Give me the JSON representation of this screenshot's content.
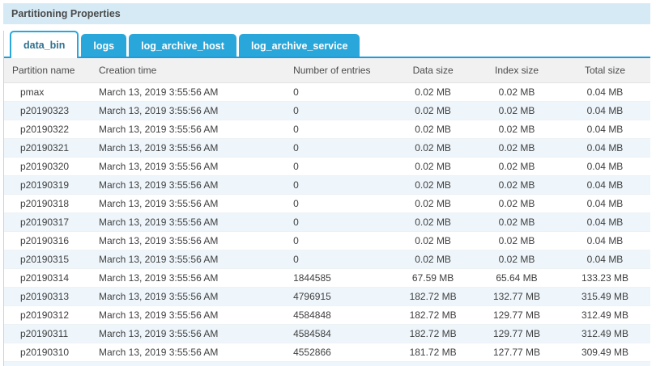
{
  "panel": {
    "title": "Partitioning Properties"
  },
  "tabs": [
    {
      "label": "data_bin",
      "active": true
    },
    {
      "label": "logs",
      "active": false
    },
    {
      "label": "log_archive_host",
      "active": false
    },
    {
      "label": "log_archive_service",
      "active": false
    }
  ],
  "table": {
    "columns": [
      "Partition name",
      "Creation time",
      "Number of entries",
      "Data size",
      "Index size",
      "Total size"
    ],
    "rows": [
      [
        "pmax",
        "March 13, 2019 3:55:56 AM",
        "0",
        "0.02 MB",
        "0.02 MB",
        "0.04 MB"
      ],
      [
        "p20190323",
        "March 13, 2019 3:55:56 AM",
        "0",
        "0.02 MB",
        "0.02 MB",
        "0.04 MB"
      ],
      [
        "p20190322",
        "March 13, 2019 3:55:56 AM",
        "0",
        "0.02 MB",
        "0.02 MB",
        "0.04 MB"
      ],
      [
        "p20190321",
        "March 13, 2019 3:55:56 AM",
        "0",
        "0.02 MB",
        "0.02 MB",
        "0.04 MB"
      ],
      [
        "p20190320",
        "March 13, 2019 3:55:56 AM",
        "0",
        "0.02 MB",
        "0.02 MB",
        "0.04 MB"
      ],
      [
        "p20190319",
        "March 13, 2019 3:55:56 AM",
        "0",
        "0.02 MB",
        "0.02 MB",
        "0.04 MB"
      ],
      [
        "p20190318",
        "March 13, 2019 3:55:56 AM",
        "0",
        "0.02 MB",
        "0.02 MB",
        "0.04 MB"
      ],
      [
        "p20190317",
        "March 13, 2019 3:55:56 AM",
        "0",
        "0.02 MB",
        "0.02 MB",
        "0.04 MB"
      ],
      [
        "p20190316",
        "March 13, 2019 3:55:56 AM",
        "0",
        "0.02 MB",
        "0.02 MB",
        "0.04 MB"
      ],
      [
        "p20190315",
        "March 13, 2019 3:55:56 AM",
        "0",
        "0.02 MB",
        "0.02 MB",
        "0.04 MB"
      ],
      [
        "p20190314",
        "March 13, 2019 3:55:56 AM",
        "1844585",
        "67.59 MB",
        "65.64 MB",
        "133.23 MB"
      ],
      [
        "p20190313",
        "March 13, 2019 3:55:56 AM",
        "4796915",
        "182.72 MB",
        "132.77 MB",
        "315.49 MB"
      ],
      [
        "p20190312",
        "March 13, 2019 3:55:56 AM",
        "4584848",
        "182.72 MB",
        "129.77 MB",
        "312.49 MB"
      ],
      [
        "p20190311",
        "March 13, 2019 3:55:56 AM",
        "4584584",
        "182.72 MB",
        "129.77 MB",
        "312.49 MB"
      ],
      [
        "p20190310",
        "March 13, 2019 3:55:56 AM",
        "4552866",
        "181.72 MB",
        "127.77 MB",
        "309.49 MB"
      ]
    ]
  },
  "colors": {
    "accent_blue": "#29a7da",
    "tab_underline": "#1d9cd8",
    "title_bar_bg": "#d6eaf5",
    "active_tab_text": "#31708f",
    "table_header_bg": "#f1f1f1",
    "row_alt_bg": "#eef6fc",
    "panel_border": "#b5dcee"
  }
}
